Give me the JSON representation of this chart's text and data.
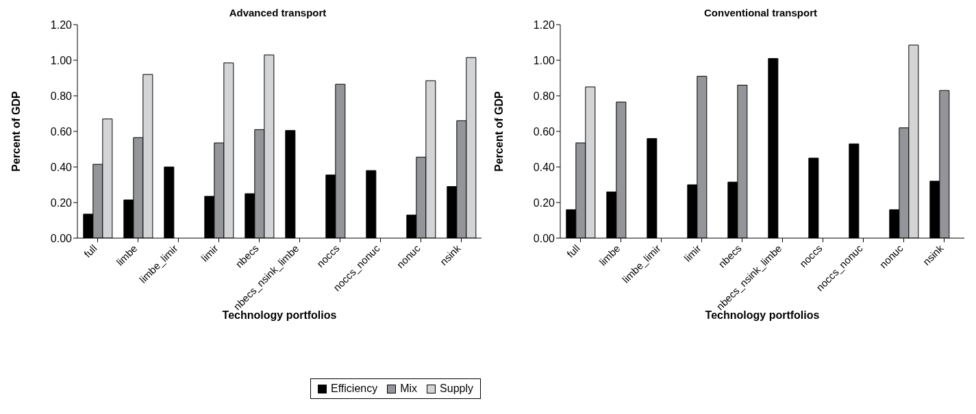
{
  "chart_data": [
    {
      "type": "bar",
      "title": "Advanced transport",
      "xlabel": "Technology portfolios",
      "ylabel": "Percent of GDP",
      "categories": [
        "full",
        "limbe",
        "limbe_limir",
        "limir",
        "nbecs",
        "nbecs_nsink_limbe",
        "noccs",
        "noccs_nonuc",
        "nonuc",
        "nsink"
      ],
      "series": [
        {
          "name": "Efficiency",
          "color": "#000000",
          "values": [
            0.135,
            0.215,
            0.4,
            0.235,
            0.25,
            0.605,
            0.355,
            0.38,
            0.13,
            0.29
          ]
        },
        {
          "name": "Mix",
          "color": "#939598",
          "values": [
            0.415,
            0.565,
            null,
            0.535,
            0.61,
            null,
            0.865,
            null,
            0.455,
            0.66
          ]
        },
        {
          "name": "Supply",
          "color": "#d3d4d6",
          "values": [
            0.67,
            0.92,
            null,
            0.985,
            1.03,
            null,
            null,
            null,
            0.885,
            1.015
          ]
        }
      ],
      "ylim": [
        0,
        1.2
      ],
      "yticks": [
        {
          "value": 0,
          "label": "0.00"
        },
        {
          "value": 0.2,
          "label": "0.20"
        },
        {
          "value": 0.4,
          "label": "0.40"
        },
        {
          "value": 0.6,
          "label": "0.60"
        },
        {
          "value": 0.8,
          "label": "0.80"
        },
        {
          "value": 1.0,
          "label": "1.00"
        },
        {
          "value": 1.2,
          "label": "1.20"
        }
      ],
      "legend": "bottom"
    },
    {
      "type": "bar",
      "title": "Conventional transport",
      "xlabel": "Technology portfolios",
      "ylabel": "Percent of GDP",
      "categories": [
        "full",
        "limbe",
        "limbe_limir",
        "limir",
        "nbecs",
        "nbecs_nsink_limbe",
        "noccs",
        "noccs_nonuc",
        "nonuc",
        "nsink"
      ],
      "series": [
        {
          "color": "#000000",
          "values": [
            0.16,
            0.26,
            0.56,
            0.3,
            0.315,
            1.01,
            0.45,
            0.53,
            0.16,
            0.32
          ]
        },
        {
          "color": "#939598",
          "values": [
            0.535,
            0.765,
            null,
            0.91,
            0.86,
            null,
            null,
            null,
            0.62,
            0.83
          ]
        },
        {
          "color": "#d3d4d6",
          "values": [
            0.85,
            null,
            null,
            null,
            null,
            null,
            null,
            null,
            1.085,
            null
          ]
        }
      ],
      "ylim": [
        0,
        1.2
      ],
      "yticks": [
        {
          "value": 0,
          "label": "0.00"
        },
        {
          "value": 0.2,
          "label": "0.20"
        },
        {
          "value": 0.4,
          "label": "0.40"
        },
        {
          "value": 0.6,
          "label": "0.60"
        },
        {
          "value": 0.8,
          "label": "0.80"
        },
        {
          "value": 1.0,
          "label": "1.00"
        },
        {
          "value": 1.2,
          "label": "1.20"
        }
      ]
    }
  ]
}
